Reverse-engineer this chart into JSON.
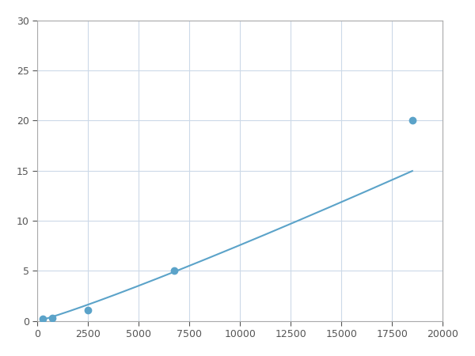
{
  "x_points": [
    250,
    750,
    2500,
    6750,
    18500
  ],
  "y_points": [
    0.2,
    0.3,
    1.1,
    5.0,
    20.0
  ],
  "line_color": "#5ba3c9",
  "marker_color": "#5ba3c9",
  "xlim": [
    0,
    20000
  ],
  "ylim": [
    0,
    30
  ],
  "xticks": [
    0,
    2500,
    5000,
    7500,
    10000,
    12500,
    15000,
    17500,
    20000
  ],
  "yticks": [
    0,
    5,
    10,
    15,
    20,
    25,
    30
  ],
  "xtick_labels": [
    "0",
    "2500",
    "5000",
    "7500",
    "10000",
    "12500",
    "15000",
    "17500",
    "20000"
  ],
  "ytick_labels": [
    "0",
    "5",
    "10",
    "15",
    "20",
    "25",
    "30"
  ],
  "grid_color": "#ccd9e8",
  "background_color": "#ffffff",
  "spine_color": "#aaaaaa",
  "marker_size": 6,
  "line_width": 1.5
}
